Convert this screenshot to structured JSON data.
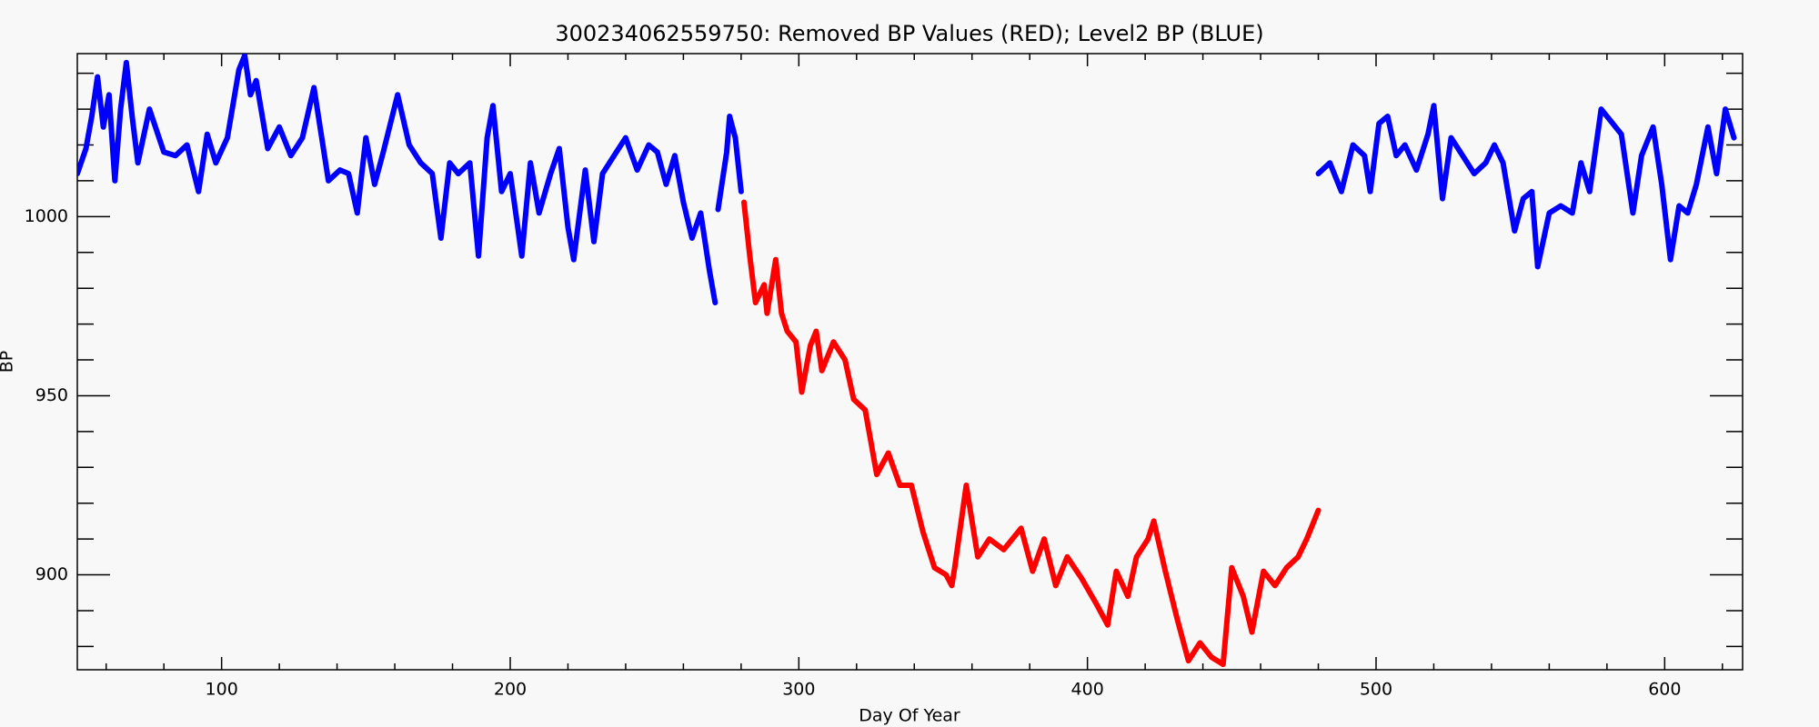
{
  "chart_data": {
    "type": "line",
    "title": "300234062559750: Removed BP Values (RED); Level2 BP (BLUE)",
    "x_label": "Day Of Year",
    "y_label": "BP",
    "xlim": [
      50,
      627
    ],
    "ylim": [
      873.5,
      1045.5
    ],
    "xticks": [
      100,
      200,
      300,
      400,
      500,
      600
    ],
    "yticks": [
      900,
      950,
      1000
    ],
    "xminor": [
      60,
      80,
      120,
      140,
      160,
      180,
      220,
      240,
      260,
      280,
      320,
      340,
      360,
      380,
      420,
      440,
      460,
      480,
      520,
      540,
      560,
      580,
      620
    ],
    "yminor": [
      880,
      890,
      910,
      920,
      930,
      940,
      960,
      970,
      980,
      990,
      1010,
      1020,
      1030,
      1040
    ],
    "series": [
      {
        "name": "Level2 BP",
        "color": "#0000ff",
        "x": [
          50,
          53,
          55,
          57,
          59,
          61,
          63,
          65,
          67,
          69,
          71,
          75,
          80,
          84,
          88,
          92,
          95,
          98,
          102,
          106,
          108,
          110,
          112,
          116,
          120,
          124,
          128,
          132,
          137,
          141,
          144,
          147,
          150,
          153,
          156,
          161,
          165,
          169,
          173,
          176,
          179,
          182,
          186,
          189,
          192,
          194,
          197,
          200,
          204,
          207,
          210,
          214,
          217,
          220,
          222,
          226,
          229,
          232,
          236,
          240,
          244,
          248,
          251,
          254,
          257,
          260,
          263,
          266,
          269,
          271,
          271.5,
          272,
          275,
          276,
          278,
          280,
          380,
          480,
          484,
          488,
          492,
          496,
          498,
          501,
          504,
          507,
          510,
          514,
          518,
          520,
          523,
          526,
          530,
          534,
          538,
          541,
          544,
          548,
          551,
          554,
          556,
          560,
          564,
          568,
          571,
          574,
          578,
          582,
          585,
          589,
          592,
          596,
          599,
          602,
          605,
          608,
          611,
          615,
          618,
          621,
          624
        ],
        "values": [
          1012,
          1019,
          1028,
          1039,
          1025,
          1034,
          1010,
          1030,
          1043,
          1028,
          1015,
          1030,
          1018,
          1017,
          1020,
          1007,
          1023,
          1015,
          1022,
          1041,
          1045,
          1034,
          1038,
          1019,
          1025,
          1017,
          1022,
          1036,
          1010,
          1013,
          1012,
          1001,
          1022,
          1009,
          1018,
          1034,
          1020,
          1015,
          1012,
          994,
          1015,
          1012,
          1015,
          989,
          1022,
          1031,
          1007,
          1012,
          989,
          1015,
          1001,
          1012,
          1019,
          997,
          988,
          1013,
          993,
          1012,
          1017,
          1022,
          1013,
          1020,
          1018,
          1009,
          1017,
          1004,
          994,
          1001,
          985,
          976,
          null,
          1002,
          1018,
          1028,
          1022,
          1007,
          null,
          1012,
          1015,
          1007,
          1020,
          1017,
          1007,
          1026,
          1028,
          1017,
          1020,
          1013,
          1023,
          1031,
          1005,
          1022,
          1017,
          1012,
          1015,
          1020,
          1015,
          996,
          1005,
          1007,
          986,
          1001,
          1003,
          1001,
          1015,
          1007,
          1030,
          1026,
          1023,
          1001,
          1017,
          1025,
          1009,
          988,
          1003,
          1001,
          1009,
          1025,
          1012,
          1030,
          1022
        ]
      },
      {
        "name": "Removed BP Values",
        "color": "#ff0000",
        "x": [
          281,
          283,
          285,
          288,
          289,
          292,
          294,
          296,
          299,
          301,
          304,
          306,
          308,
          312,
          316,
          319,
          323,
          327,
          331,
          335,
          339,
          343,
          347,
          351,
          353,
          354,
          358,
          362,
          366,
          371,
          377,
          381,
          385,
          389,
          393,
          398,
          403,
          407,
          410,
          414,
          417,
          421,
          423,
          427,
          431,
          435,
          439,
          443,
          447,
          450,
          454,
          457,
          461,
          465,
          469,
          473,
          476,
          480
        ],
        "values": [
          1004,
          989,
          976,
          981,
          973,
          988,
          973,
          968,
          965,
          951,
          964,
          968,
          957,
          965,
          960,
          949,
          946,
          928,
          934,
          925,
          925,
          912,
          902,
          900,
          897,
          902,
          925,
          905,
          910,
          907,
          913,
          901,
          910,
          897,
          905,
          899,
          892,
          886,
          901,
          894,
          905,
          910,
          915,
          901,
          888,
          876,
          881,
          877,
          875,
          902,
          894,
          884,
          901,
          897,
          902,
          905,
          910,
          918
        ]
      }
    ]
  }
}
